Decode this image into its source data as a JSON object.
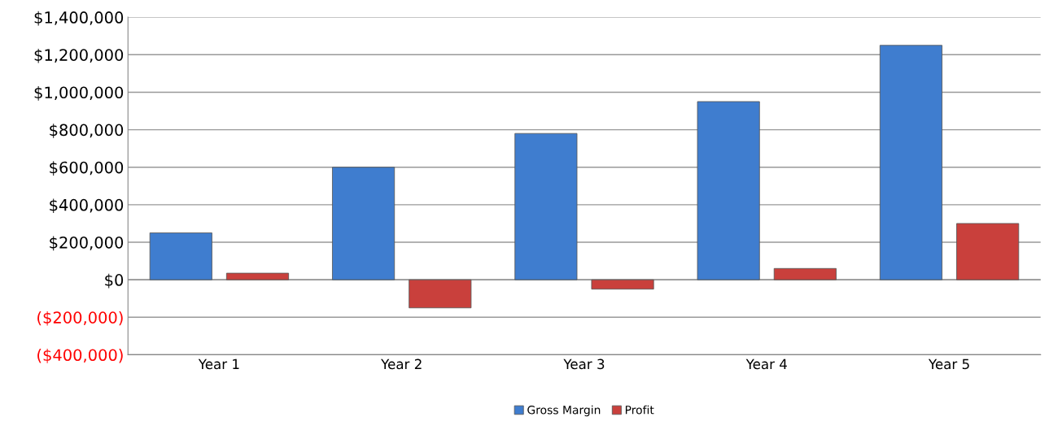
{
  "chart_data": {
    "type": "bar",
    "categories": [
      "Year 1",
      "Year 2",
      "Year 3",
      "Year 4",
      "Year 5"
    ],
    "series": [
      {
        "name": "Gross Margin",
        "color": "#3f7dcf",
        "values": [
          250000,
          600000,
          780000,
          950000,
          1250000
        ]
      },
      {
        "name": "Profit",
        "color": "#c9403c",
        "values": [
          35000,
          -150000,
          -50000,
          60000,
          300000
        ]
      }
    ],
    "ylim": [
      -400000,
      1400000
    ],
    "yticks": [
      {
        "value": -400000,
        "label": "($400,000)"
      },
      {
        "value": -200000,
        "label": "($200,000)"
      },
      {
        "value": 0,
        "label": "$0"
      },
      {
        "value": 200000,
        "label": "$200,000"
      },
      {
        "value": 400000,
        "label": "$400,000"
      },
      {
        "value": 600000,
        "label": "$600,000"
      },
      {
        "value": 800000,
        "label": "$800,000"
      },
      {
        "value": 1000000,
        "label": "$1,000,000"
      },
      {
        "value": 1200000,
        "label": "$1,200,000"
      },
      {
        "value": 1400000,
        "label": "$1,400,000"
      }
    ],
    "grid": "y",
    "legend": "bottom"
  }
}
